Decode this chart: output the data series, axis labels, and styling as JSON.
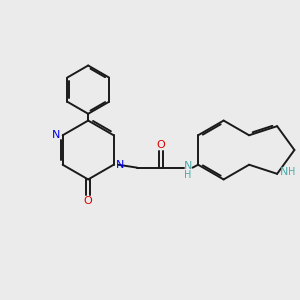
{
  "bg_color": "#ebebeb",
  "bond_color": "#1a1a1a",
  "N_color": "#0000ee",
  "O_color": "#dd0000",
  "NH_color": "#4aacac",
  "line_width": 1.4,
  "fig_width": 3.0,
  "fig_height": 3.0,
  "dpi": 100,
  "xlim": [
    0,
    10
  ],
  "ylim": [
    0,
    10
  ]
}
